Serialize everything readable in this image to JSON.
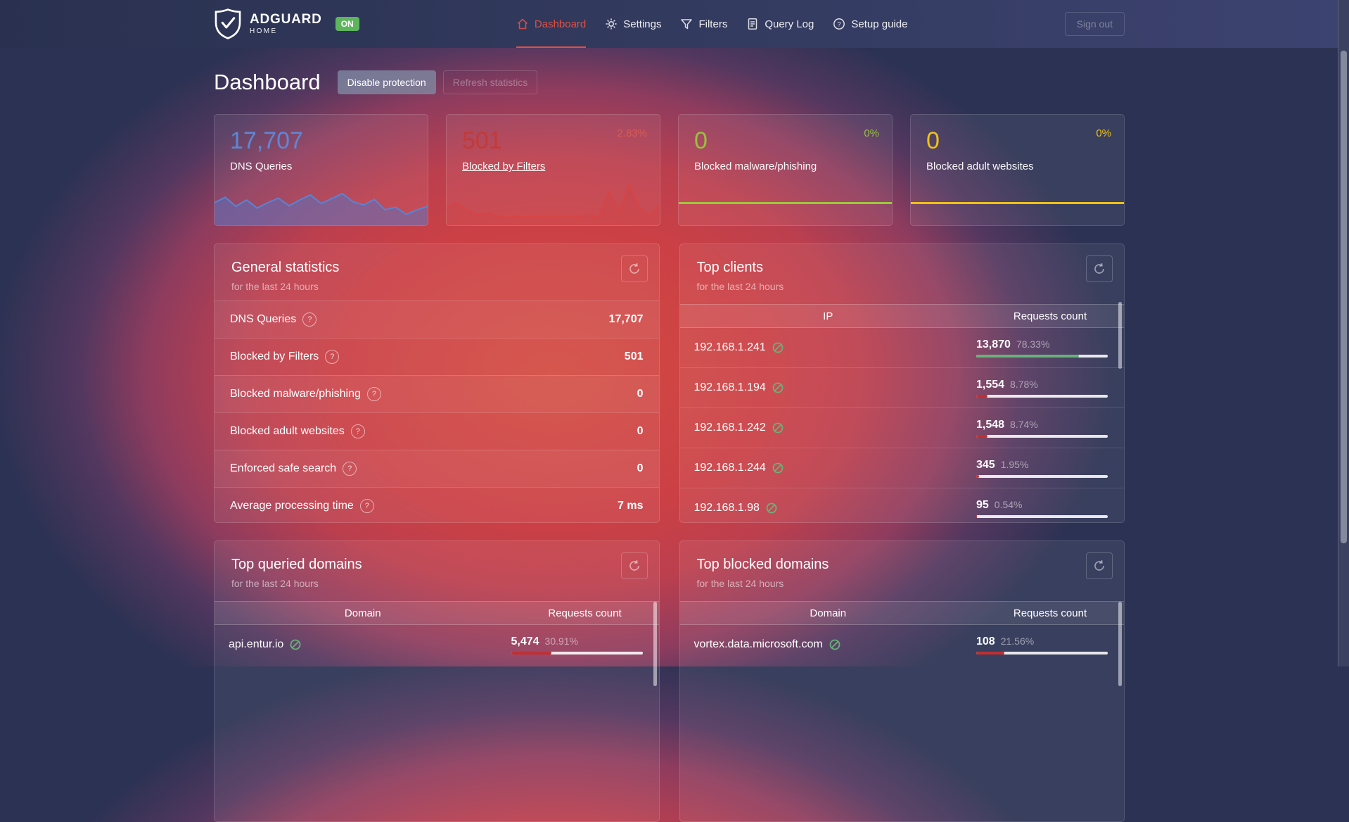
{
  "navbar": {
    "brand": {
      "name": "ADGUARD",
      "sub": "HOME",
      "status_badge": "ON"
    },
    "items": [
      {
        "label": "Dashboard"
      },
      {
        "label": "Settings"
      },
      {
        "label": "Filters"
      },
      {
        "label": "Query Log"
      },
      {
        "label": "Setup guide"
      }
    ],
    "sign_out": "Sign out"
  },
  "page": {
    "title": "Dashboard",
    "disable_protection_button": "Disable protection",
    "refresh_statistics_button": "Refresh statistics"
  },
  "stat_cards": [
    {
      "value": "17,707",
      "label": "DNS Queries",
      "percent": "",
      "value_color": "#5d87d6",
      "spark": {
        "type": "area",
        "color": "#5585d8",
        "fill": "rgba(80,115,200,0.5)",
        "points": [
          0.5,
          0.38,
          0.58,
          0.44,
          0.62,
          0.5,
          0.4,
          0.57,
          0.44,
          0.33,
          0.52,
          0.41,
          0.3,
          0.48,
          0.55,
          0.43,
          0.66,
          0.6,
          0.76,
          0.66,
          0.58
        ]
      }
    },
    {
      "value": "501",
      "label": "Blocked by Filters",
      "percent": "2.83%",
      "value_color": "#c43a36",
      "percent_color": "#d95b52",
      "spark": {
        "type": "line",
        "color": "#d64545",
        "fill": "rgba(210,60,60,0.22)",
        "points": [
          0.6,
          0.5,
          0.66,
          0.76,
          0.72,
          0.8,
          0.82,
          0.8,
          0.82,
          0.81,
          0.82,
          0.8,
          0.82,
          0.81,
          0.78,
          0.82,
          0.25,
          0.72,
          0.08,
          0.6,
          0.8,
          0.55
        ]
      }
    },
    {
      "value": "0",
      "label": "Blocked malware/phishing",
      "percent": "0%",
      "value_color": "#97c23c",
      "percent_color": "#97c23c",
      "flat_color": "#9dc73c"
    },
    {
      "value": "0",
      "label": "Blocked adult websites",
      "percent": "0%",
      "value_color": "#eec117",
      "percent_color": "#eec117",
      "flat_color": "#eec117"
    }
  ],
  "general_statistics": {
    "title": "General statistics",
    "subtitle": "for the last 24 hours",
    "rows": [
      {
        "label": "DNS Queries",
        "value": "17,707"
      },
      {
        "label": "Blocked by Filters",
        "value": "501"
      },
      {
        "label": "Blocked malware/phishing",
        "value": "0"
      },
      {
        "label": "Blocked adult websites",
        "value": "0"
      },
      {
        "label": "Enforced safe search",
        "value": "0"
      },
      {
        "label": "Average processing time",
        "value": "7 ms"
      }
    ]
  },
  "top_clients": {
    "title": "Top clients",
    "subtitle": "for the last 24 hours",
    "headers": [
      "IP",
      "Requests count"
    ],
    "rows": [
      {
        "name": "192.168.1.241",
        "count": "13,870",
        "percent": "78.33%",
        "bar": 78.33,
        "bar_color": "#67b279"
      },
      {
        "name": "192.168.1.194",
        "count": "1,554",
        "percent": "8.78%",
        "bar": 8.78,
        "bar_color": "#c13030"
      },
      {
        "name": "192.168.1.242",
        "count": "1,548",
        "percent": "8.74%",
        "bar": 8.74,
        "bar_color": "#c13030"
      },
      {
        "name": "192.168.1.244",
        "count": "345",
        "percent": "1.95%",
        "bar": 1.95,
        "bar_color": "#c13030"
      },
      {
        "name": "192.168.1.98",
        "count": "95",
        "percent": "0.54%",
        "bar": 0.54,
        "bar_color": "#c13030"
      }
    ]
  },
  "top_queried_domains": {
    "title": "Top queried domains",
    "subtitle": "for the last 24 hours",
    "headers": [
      "Domain",
      "Requests count"
    ],
    "rows": [
      {
        "name": "api.entur.io",
        "count": "5,474",
        "percent": "30.91%",
        "bar": 30.91,
        "bar_color": "#c13030"
      }
    ]
  },
  "top_blocked_domains": {
    "title": "Top blocked domains",
    "subtitle": "for the last 24 hours",
    "headers": [
      "Domain",
      "Requests count"
    ],
    "rows": [
      {
        "name": "vortex.data.microsoft.com",
        "count": "108",
        "percent": "21.56%",
        "bar": 21.56,
        "bar_color": "#c13030",
        "unblock": true
      }
    ]
  },
  "icon_colors": {
    "unblock_green": "#67b279"
  }
}
